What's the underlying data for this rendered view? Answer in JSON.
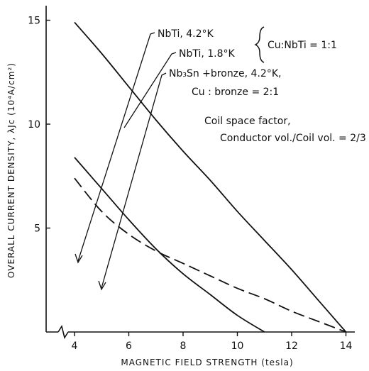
{
  "chart_data": {
    "type": "line",
    "title": "",
    "xlabel": "MAGNETIC FIELD STRENGTH (tesla)",
    "ylabel": "OVERALL CURRENT DENSITY, λJc (10⁴A/cm²)",
    "xlim": [
      3,
      14.5
    ],
    "ylim": [
      0,
      16
    ],
    "x_ticks": [
      4,
      6,
      8,
      10,
      12,
      14
    ],
    "y_ticks": [
      5,
      10,
      15
    ],
    "grid": false,
    "series": [
      {
        "name": "NbTi, 4.2°K",
        "style": "solid",
        "x": [
          4,
          5,
          6,
          7,
          8,
          9,
          10,
          11
        ],
        "y": [
          8.4,
          6.9,
          5.4,
          4.0,
          2.8,
          1.8,
          0.8,
          0
        ]
      },
      {
        "name": "NbTi, 1.8°K",
        "style": "solid",
        "x": [
          4,
          5,
          6,
          7,
          8,
          9,
          10,
          11,
          12,
          13,
          14
        ],
        "y": [
          14.9,
          13.4,
          11.8,
          10.2,
          8.7,
          7.3,
          5.8,
          4.4,
          3.0,
          1.5,
          0
        ]
      },
      {
        "name": "Nb₃Sn + bronze, 4.2°K, Cu : bronze = 2:1",
        "style": "dashed",
        "x": [
          4,
          5,
          6,
          7,
          8,
          9,
          10,
          11,
          12,
          13,
          14
        ],
        "y": [
          7.4,
          5.8,
          4.7,
          3.9,
          3.3,
          2.7,
          2.1,
          1.6,
          1.0,
          0.5,
          0
        ]
      }
    ],
    "annotations": {
      "label_nbti_42": "NbTi, 4.2°K",
      "label_nbti_18": "NbTi, 1.8°K",
      "bracket_ratio": "Cu:NbTi = 1:1",
      "label_nb3sn_line1": "Nb₃Sn +bronze, 4.2°K,",
      "label_nb3sn_line2": "Cu : bronze = 2:1",
      "space_factor_line1": "Coil space factor,",
      "space_factor_line2": "Conductor vol./Coil vol. = 2/3"
    }
  }
}
